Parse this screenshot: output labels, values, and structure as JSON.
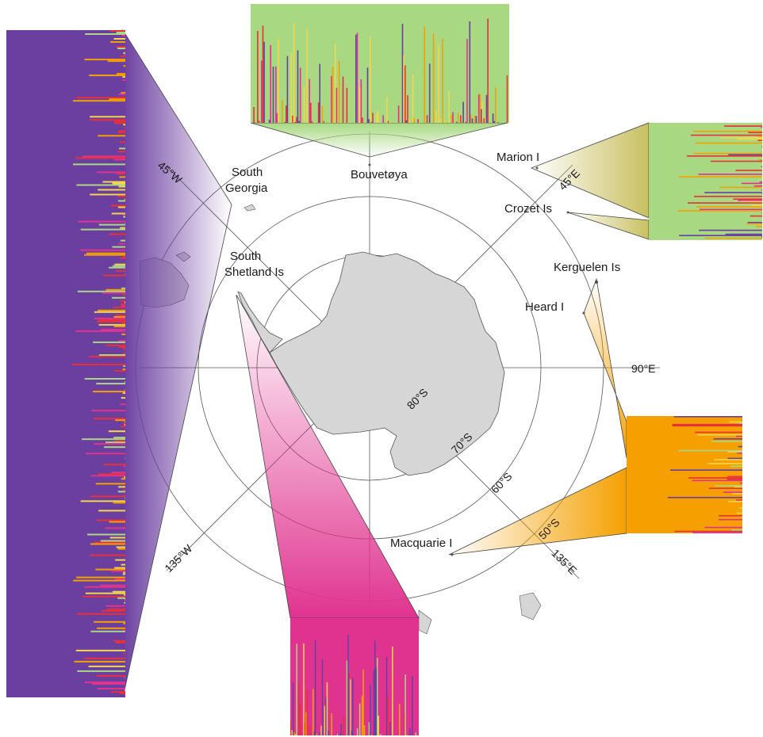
{
  "locations": {
    "south_georgia": [
      "South",
      "Georgia"
    ],
    "bouvetoya": "Bouvetøya",
    "marion": "Marion I",
    "crozet": "Crozet Is",
    "kerguelen": "Kerguelen Is",
    "heard": "Heard I",
    "south_shetland": [
      "South",
      "Shetland Is"
    ],
    "macquarie": "Macquarie I"
  },
  "meridians": {
    "m45w": "45°W",
    "m45e": "45°E",
    "m90e": "90°E",
    "m135w": "135°W",
    "m135e": "135°E"
  },
  "parallels": {
    "p80": "80°S",
    "p70": "70°S",
    "p60": "60°S",
    "p50": "50°S"
  },
  "cluster_colors": {
    "purple": "#6b3fa0",
    "green": "#a8d982",
    "orange": "#f5a000",
    "magenta": "#e0338f",
    "red": "#e8303a",
    "yellow": "#f2d64b"
  },
  "land_color": "#d6d6d6"
}
